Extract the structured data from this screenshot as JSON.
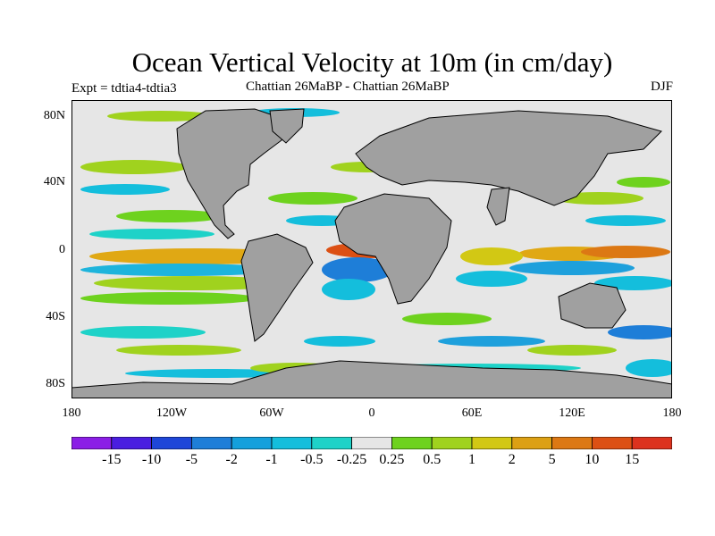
{
  "title": "Ocean Vertical Velocity at 10m (in cm/day)",
  "expt_label": "Expt = tdtia4-tdtia3",
  "center_label": "Chattian  26MaBP - Chattian  26MaBP",
  "season_label": "DJF",
  "lat_ticks": [
    "80N",
    "40N",
    "0",
    "40S",
    "80S"
  ],
  "lon_ticks": [
    "180",
    "120W",
    "60W",
    "0",
    "60E",
    "120E",
    "180"
  ],
  "colorbar": {
    "labels": [
      "-15",
      "-10",
      "-5",
      "-2",
      "-1",
      "-0.5",
      "-0.25",
      "0.25",
      "0.5",
      "1",
      "2",
      "5",
      "10",
      "15"
    ],
    "colors": [
      "#8b1ee6",
      "#4a1ee0",
      "#1e46d8",
      "#1e7ed8",
      "#14a0dc",
      "#14bedc",
      "#1ed2c8",
      "#e6e6e6",
      "#6ed21e",
      "#a0d21e",
      "#d2c814",
      "#dca014",
      "#dc7814",
      "#dc5014",
      "#dc321e"
    ]
  },
  "legend_colors": {
    "land": "#a0a0a0",
    "neutral": "#e6e6e6"
  }
}
